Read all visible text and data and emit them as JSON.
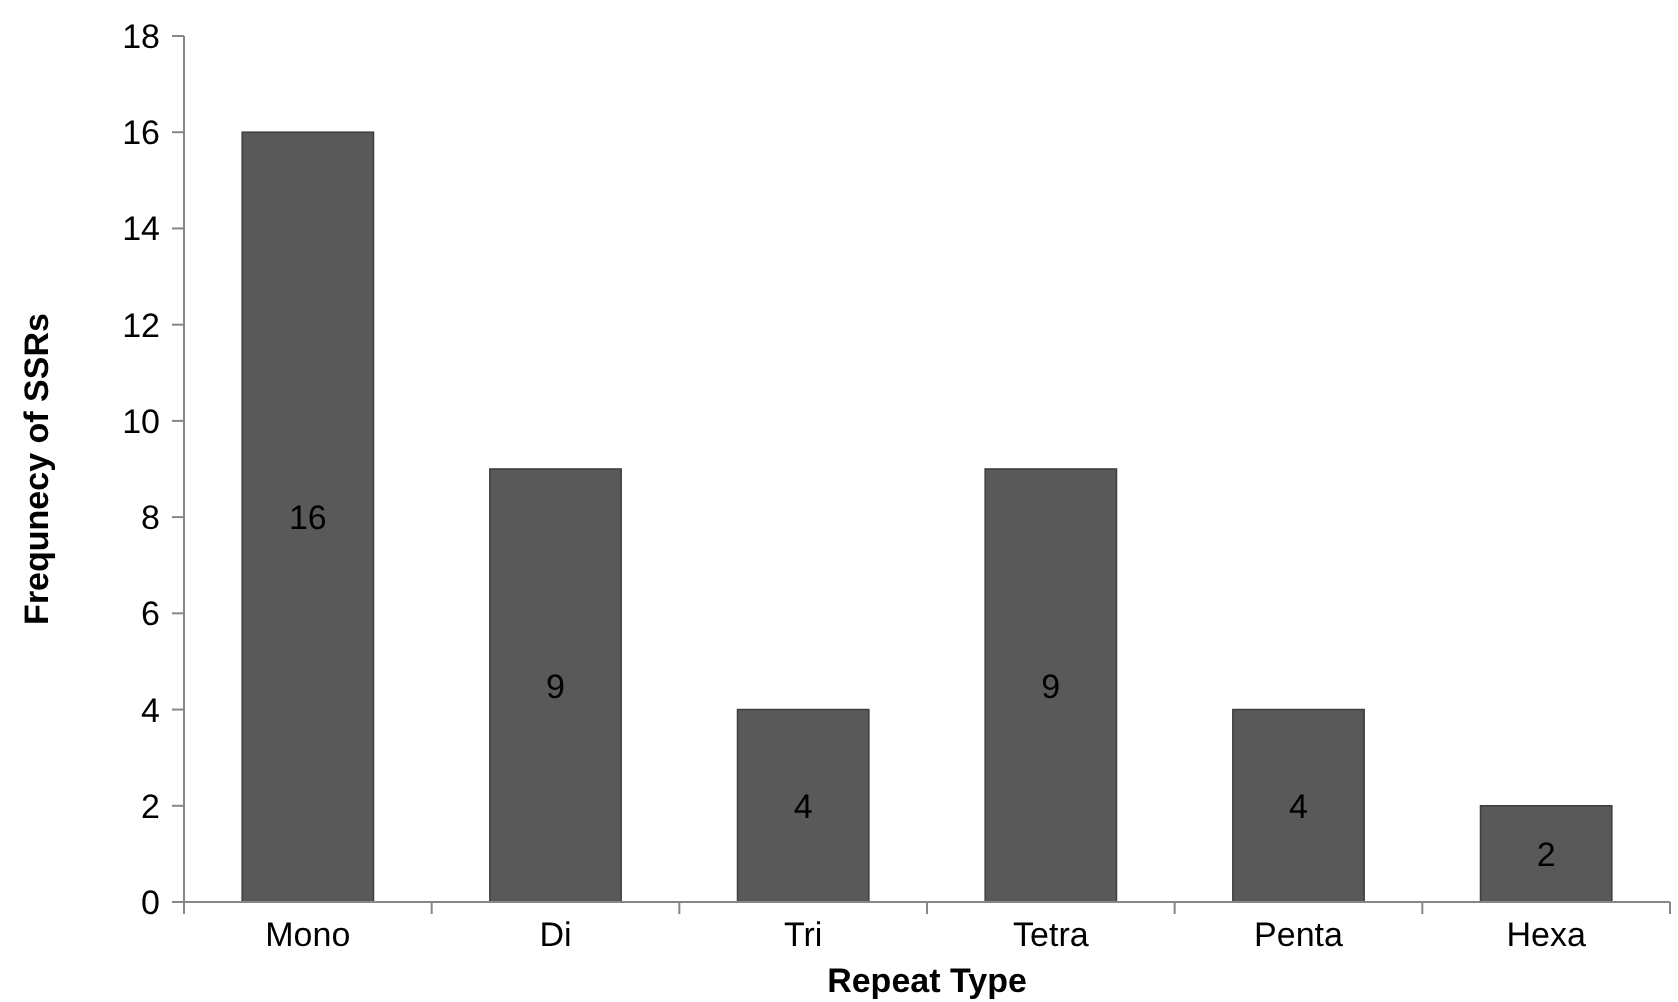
{
  "chart_data": {
    "type": "bar",
    "xlabel": "Repeat Type",
    "ylabel": "Frequnecy of SSRs",
    "categories": [
      "Mono",
      "Di",
      "Tri",
      "Tetra",
      "Penta",
      "Hexa"
    ],
    "values": [
      16,
      9,
      4,
      9,
      4,
      2
    ],
    "color": "#595959",
    "ylim": [
      0,
      18
    ],
    "yticks": [
      0,
      2,
      4,
      6,
      8,
      10,
      12,
      14,
      16,
      18
    ],
    "grid": false,
    "data_labels": true
  }
}
